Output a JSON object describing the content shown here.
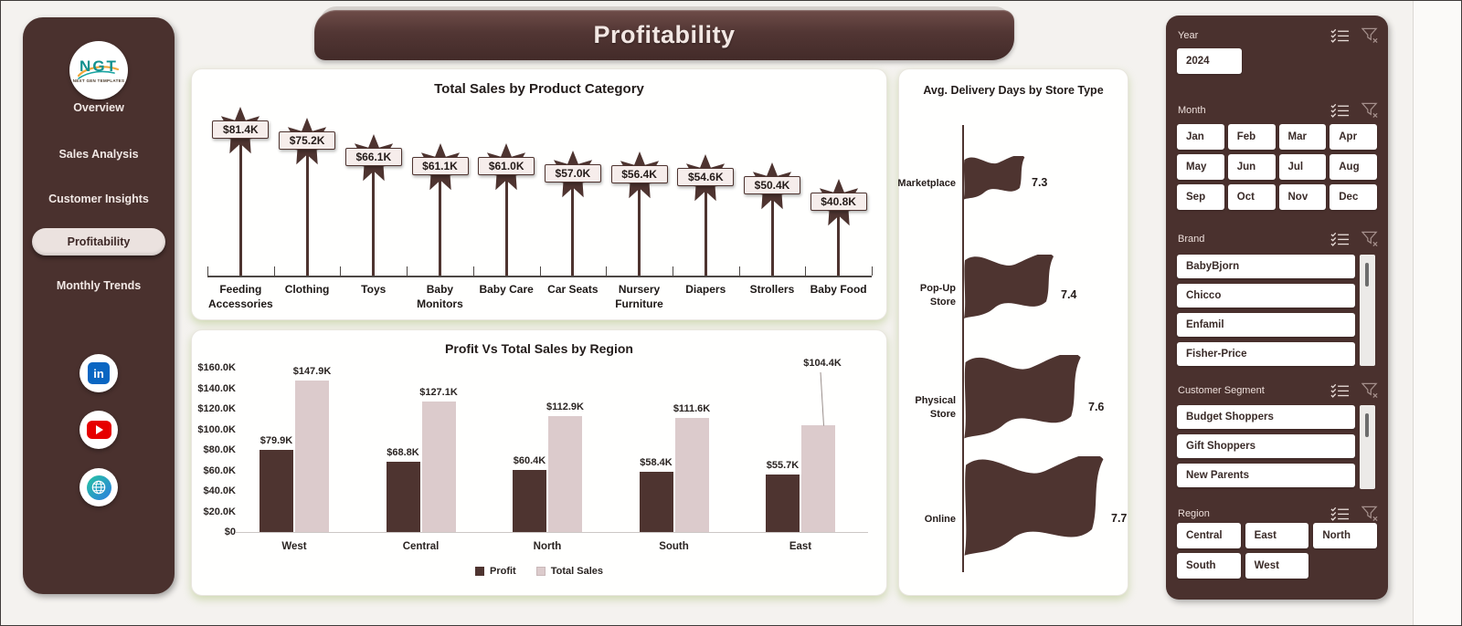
{
  "header": {
    "title": "Profitability"
  },
  "sidebar": {
    "logo_text": "NGT",
    "logo_subtext": "NEXT GEN TEMPLATES",
    "nav": [
      {
        "label": "Overview",
        "active": false
      },
      {
        "label": "Sales Analysis",
        "active": false
      },
      {
        "label": "Customer Insights",
        "active": false
      },
      {
        "label": "Profitability",
        "active": true
      },
      {
        "label": "Monthly Trends",
        "active": false
      }
    ],
    "social": [
      "linkedin",
      "youtube",
      "website"
    ]
  },
  "chart_data": [
    {
      "type": "pictorial-bar",
      "title": "Total Sales by Product Category",
      "categories": [
        "Feeding Accessories",
        "Clothing",
        "Toys",
        "Baby Monitors",
        "Baby Care",
        "Car Seats",
        "Nursery Furniture",
        "Diapers",
        "Strollers",
        "Baby Food"
      ],
      "values": [
        81.4,
        75.2,
        66.1,
        61.1,
        61.0,
        57.0,
        56.4,
        54.6,
        50.4,
        40.8
      ],
      "value_labels": [
        "$81.4K",
        "$75.2K",
        "$66.1K",
        "$61.1K",
        "$61.0K",
        "$57.0K",
        "$56.4K",
        "$54.6K",
        "$50.4K",
        "$40.8K"
      ],
      "unit": "K USD",
      "marker": "star-on-pole"
    },
    {
      "type": "bar",
      "title": "Profit Vs Total Sales by Region",
      "categories": [
        "West",
        "Central",
        "North",
        "South",
        "East"
      ],
      "series": [
        {
          "name": "Profit",
          "color": "#4e3430",
          "values": [
            79.9,
            68.8,
            60.4,
            58.4,
            55.7
          ],
          "labels": [
            "$79.9K",
            "$68.8K",
            "$60.4K",
            "$58.4K",
            "$55.7K"
          ]
        },
        {
          "name": "Total Sales",
          "color": "#dccbcc",
          "values": [
            147.9,
            127.1,
            112.9,
            111.6,
            104.4
          ],
          "labels": [
            "$147.9K",
            "$127.1K",
            "$112.9K",
            "$111.6K",
            "$104.4K"
          ]
        }
      ],
      "y_ticks": [
        "$160.0K",
        "$140.0K",
        "$120.0K",
        "$100.0K",
        "$80.0K",
        "$60.0K",
        "$40.0K",
        "$20.0K",
        "$0"
      ],
      "ylim": [
        0,
        160
      ],
      "grid": false,
      "legend_position": "bottom",
      "callout": {
        "series": "Total Sales",
        "category": "East"
      }
    },
    {
      "type": "pictorial",
      "title": "Avg. Delivery Days by Store Type",
      "categories": [
        "Marketplace",
        "Pop-Up Store",
        "Physical Store",
        "Online"
      ],
      "values": [
        7.3,
        7.4,
        7.6,
        7.7
      ],
      "marker": "flag"
    }
  ],
  "filters": {
    "year": {
      "label": "Year",
      "options": [
        "2024"
      ]
    },
    "month": {
      "label": "Month",
      "options": [
        "Jan",
        "Feb",
        "Mar",
        "Apr",
        "May",
        "Jun",
        "Jul",
        "Aug",
        "Sep",
        "Oct",
        "Nov",
        "Dec"
      ]
    },
    "brand": {
      "label": "Brand",
      "options": [
        "BabyBjorn",
        "Chicco",
        "Enfamil",
        "Fisher-Price"
      ]
    },
    "customer_segment": {
      "label": "Customer Segment",
      "options": [
        "Budget Shoppers",
        "Gift Shoppers",
        "New Parents"
      ]
    },
    "region": {
      "label": "Region",
      "options": [
        "Central",
        "East",
        "North",
        "South",
        "West"
      ]
    }
  },
  "colors": {
    "accent_brown": "#4e3430",
    "panel_bg": "#4a312e",
    "profit_bar": "#4e3430",
    "total_sales_bar": "#dccbcc",
    "active_nav_bg": "#ebe2df",
    "card_glow": "#9eb862",
    "linkedin_blue": "#0a66c2",
    "youtube_red": "#e60000"
  }
}
